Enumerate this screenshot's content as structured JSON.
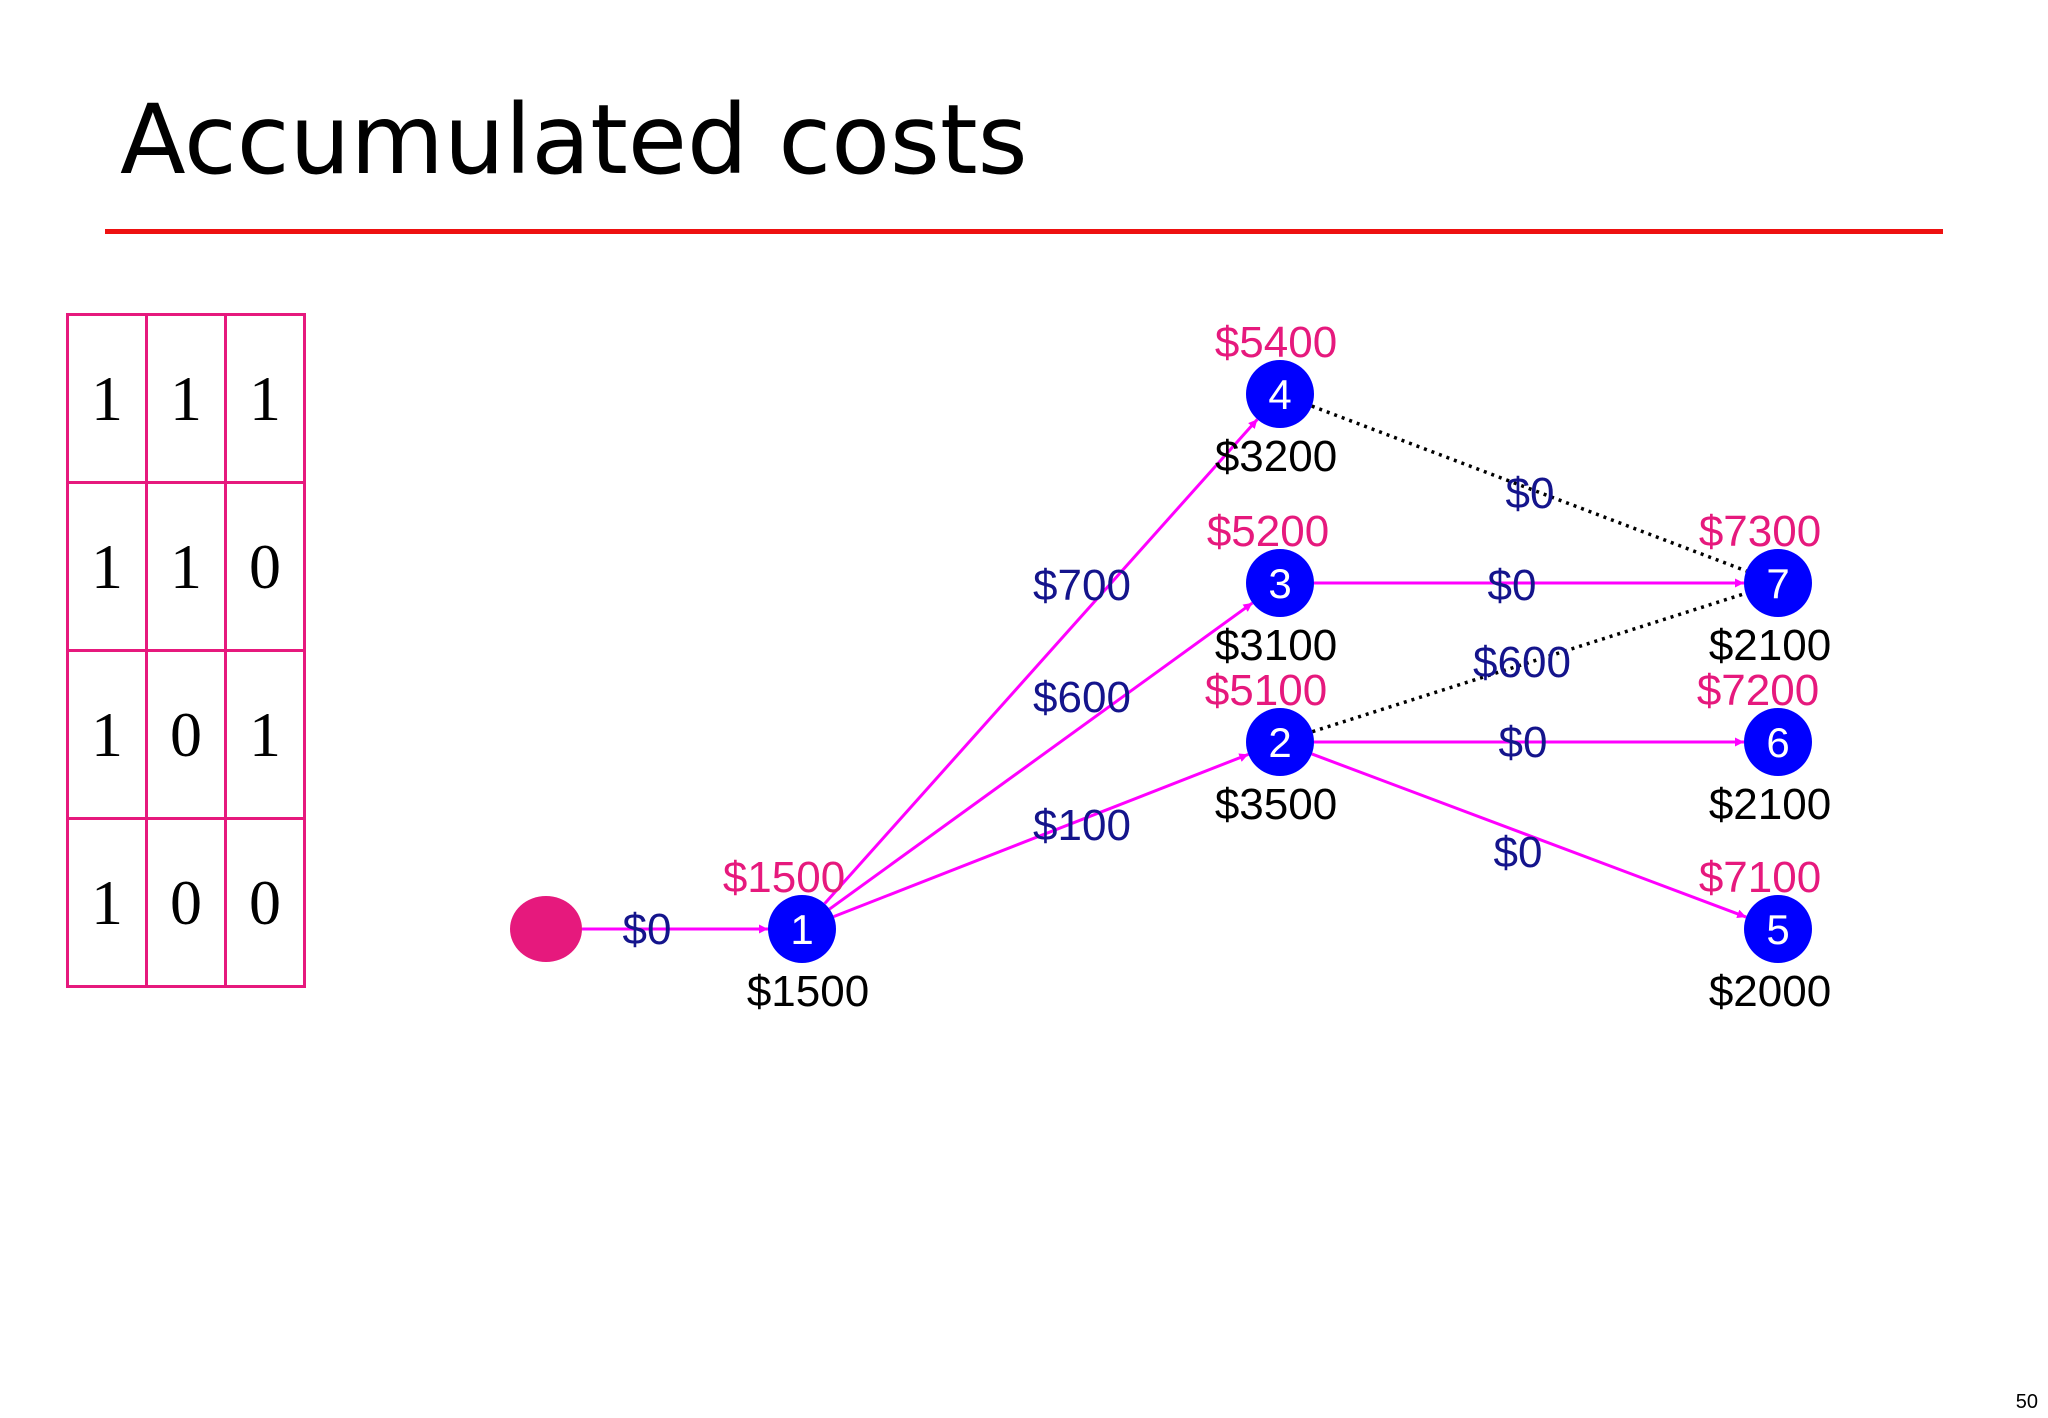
{
  "title": "Accumulated costs",
  "page_number": "50",
  "colors": {
    "accent_red": "#ee1111",
    "magenta": "#e6197d",
    "edge": "#ff00ff",
    "node": "#0000ff",
    "cost_label": "#14148c",
    "accumulated": "#e6197d"
  },
  "matrix": {
    "rows": [
      [
        "1",
        "1",
        "1"
      ],
      [
        "1",
        "1",
        "0"
      ],
      [
        "1",
        "0",
        "1"
      ],
      [
        "1",
        "0",
        "0"
      ]
    ]
  },
  "graph": {
    "start": {
      "name": "start-node"
    },
    "nodes": [
      {
        "id": "1",
        "top_label": "$1500",
        "bottom_label": "$1500"
      },
      {
        "id": "2",
        "top_label": "$5100",
        "bottom_label": "$3500"
      },
      {
        "id": "3",
        "top_label": "$5200",
        "bottom_label": "$3100"
      },
      {
        "id": "4",
        "top_label": "$5400",
        "bottom_label": "$3200"
      },
      {
        "id": "5",
        "top_label": "$7100",
        "bottom_label": "$2000"
      },
      {
        "id": "6",
        "top_label": "$7200",
        "bottom_label": "$2100"
      },
      {
        "id": "7",
        "top_label": "$7300",
        "bottom_label": "$2100"
      }
    ],
    "edges": [
      {
        "from": "start",
        "to": "1",
        "cost": "$0",
        "style": "solid"
      },
      {
        "from": "1",
        "to": "2",
        "cost": "$100",
        "style": "solid"
      },
      {
        "from": "1",
        "to": "3",
        "cost": "$600",
        "style": "solid"
      },
      {
        "from": "1",
        "to": "4",
        "cost": "$700",
        "style": "solid"
      },
      {
        "from": "2",
        "to": "5",
        "cost": "$0",
        "style": "solid"
      },
      {
        "from": "2",
        "to": "6",
        "cost": "$0",
        "style": "solid"
      },
      {
        "from": "3",
        "to": "7",
        "cost": "$0",
        "style": "solid"
      },
      {
        "from": "4",
        "to": "7",
        "cost": "$0",
        "style": "dotted"
      },
      {
        "from": "2",
        "to": "7",
        "cost": "$600",
        "style": "dotted"
      }
    ]
  }
}
